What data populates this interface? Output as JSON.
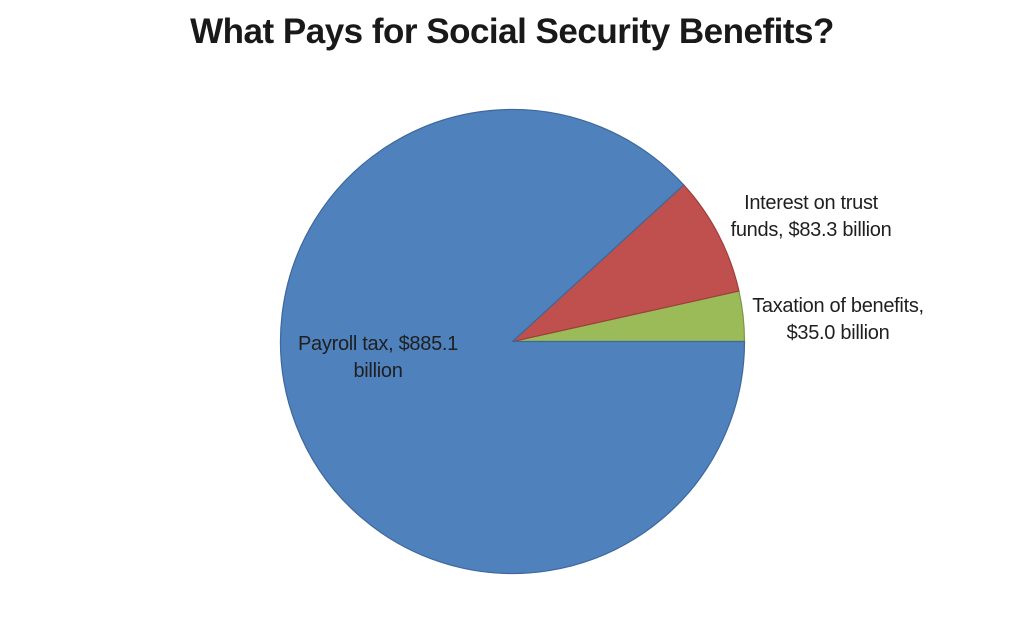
{
  "chart_data": {
    "type": "pie",
    "title": "What Pays for Social Security Benefits?",
    "total_billion": 1003.4,
    "legend": "none",
    "background": "#FFFFFF",
    "geometry_hint": {
      "start_angle_deg_from_3_oclock": 0,
      "winding": "counterclockwise",
      "slices_drawn_in_reverse_order": true
    },
    "slices": [
      {
        "name": "Payroll tax",
        "value_billion": 885.1,
        "percent": 88.2,
        "color": "#4F81BD",
        "border_color": "#3D689B",
        "label_line1": "Payroll tax, $885.1",
        "label_line2": "billion",
        "label_placement": "inside-left"
      },
      {
        "name": "Interest on trust funds",
        "value_billion": 83.3,
        "percent": 8.3,
        "color": "#C0504D",
        "border_color": "#9B403E",
        "label_line1": "Interest on trust",
        "label_line2": "funds, $83.3 billion",
        "label_placement": "outside-upper-right"
      },
      {
        "name": "Taxation of benefits",
        "value_billion": 35.0,
        "percent": 3.5,
        "color": "#9BBB59",
        "border_color": "#7D9748",
        "label_line1": "Taxation of benefits,",
        "label_line2": "$35.0 billion",
        "label_placement": "outside-right"
      }
    ]
  }
}
